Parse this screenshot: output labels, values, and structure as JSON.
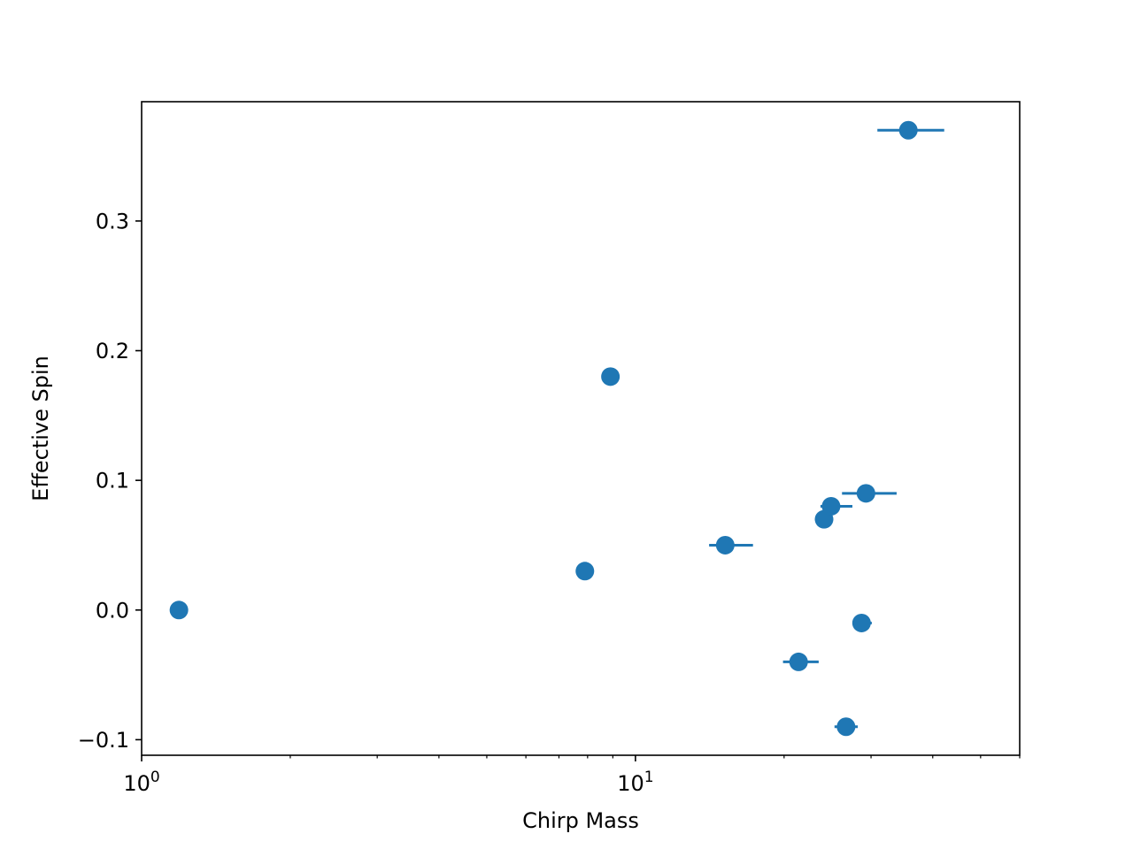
{
  "chart_data": {
    "type": "scatter",
    "title": "",
    "xlabel": "Chirp Mass",
    "ylabel": "Effective Spin",
    "xscale": "log",
    "xlim": [
      1.0,
      60.0
    ],
    "ylim": [
      -0.112,
      0.392
    ],
    "grid": false,
    "color": "#1f77b4",
    "x_ticks": [
      {
        "value": 1,
        "label": "10",
        "exp": "0"
      },
      {
        "value": 10,
        "label": "10",
        "exp": "1"
      }
    ],
    "y_ticks": [
      {
        "value": -0.1,
        "label": "−0.1"
      },
      {
        "value": 0.0,
        "label": "0.0"
      },
      {
        "value": 0.1,
        "label": "0.1"
      },
      {
        "value": 0.2,
        "label": "0.2"
      },
      {
        "value": 0.3,
        "label": "0.3"
      }
    ],
    "points": [
      {
        "x": 1.19,
        "y": 0.0,
        "xerr_low": 0.0,
        "xerr_high": 0.0
      },
      {
        "x": 7.9,
        "y": 0.03,
        "xerr_low": 0.0,
        "xerr_high": 0.0
      },
      {
        "x": 8.9,
        "y": 0.18,
        "xerr_low": 0.0,
        "xerr_high": 0.0
      },
      {
        "x": 15.2,
        "y": 0.05,
        "xerr_low": 1.1,
        "xerr_high": 2.1
      },
      {
        "x": 21.4,
        "y": -0.04,
        "xerr_low": 1.5,
        "xerr_high": 2.1
      },
      {
        "x": 24.1,
        "y": 0.07,
        "xerr_low": 0.5,
        "xerr_high": 0.9
      },
      {
        "x": 24.9,
        "y": 0.08,
        "xerr_low": 1.2,
        "xerr_high": 2.6
      },
      {
        "x": 26.7,
        "y": -0.09,
        "xerr_low": 1.4,
        "xerr_high": 1.5
      },
      {
        "x": 28.7,
        "y": -0.01,
        "xerr_low": 0.9,
        "xerr_high": 1.4
      },
      {
        "x": 29.3,
        "y": 0.09,
        "xerr_low": 3.1,
        "xerr_high": 4.5
      },
      {
        "x": 35.7,
        "y": 0.37,
        "xerr_low": 4.8,
        "xerr_high": 6.5
      }
    ]
  }
}
